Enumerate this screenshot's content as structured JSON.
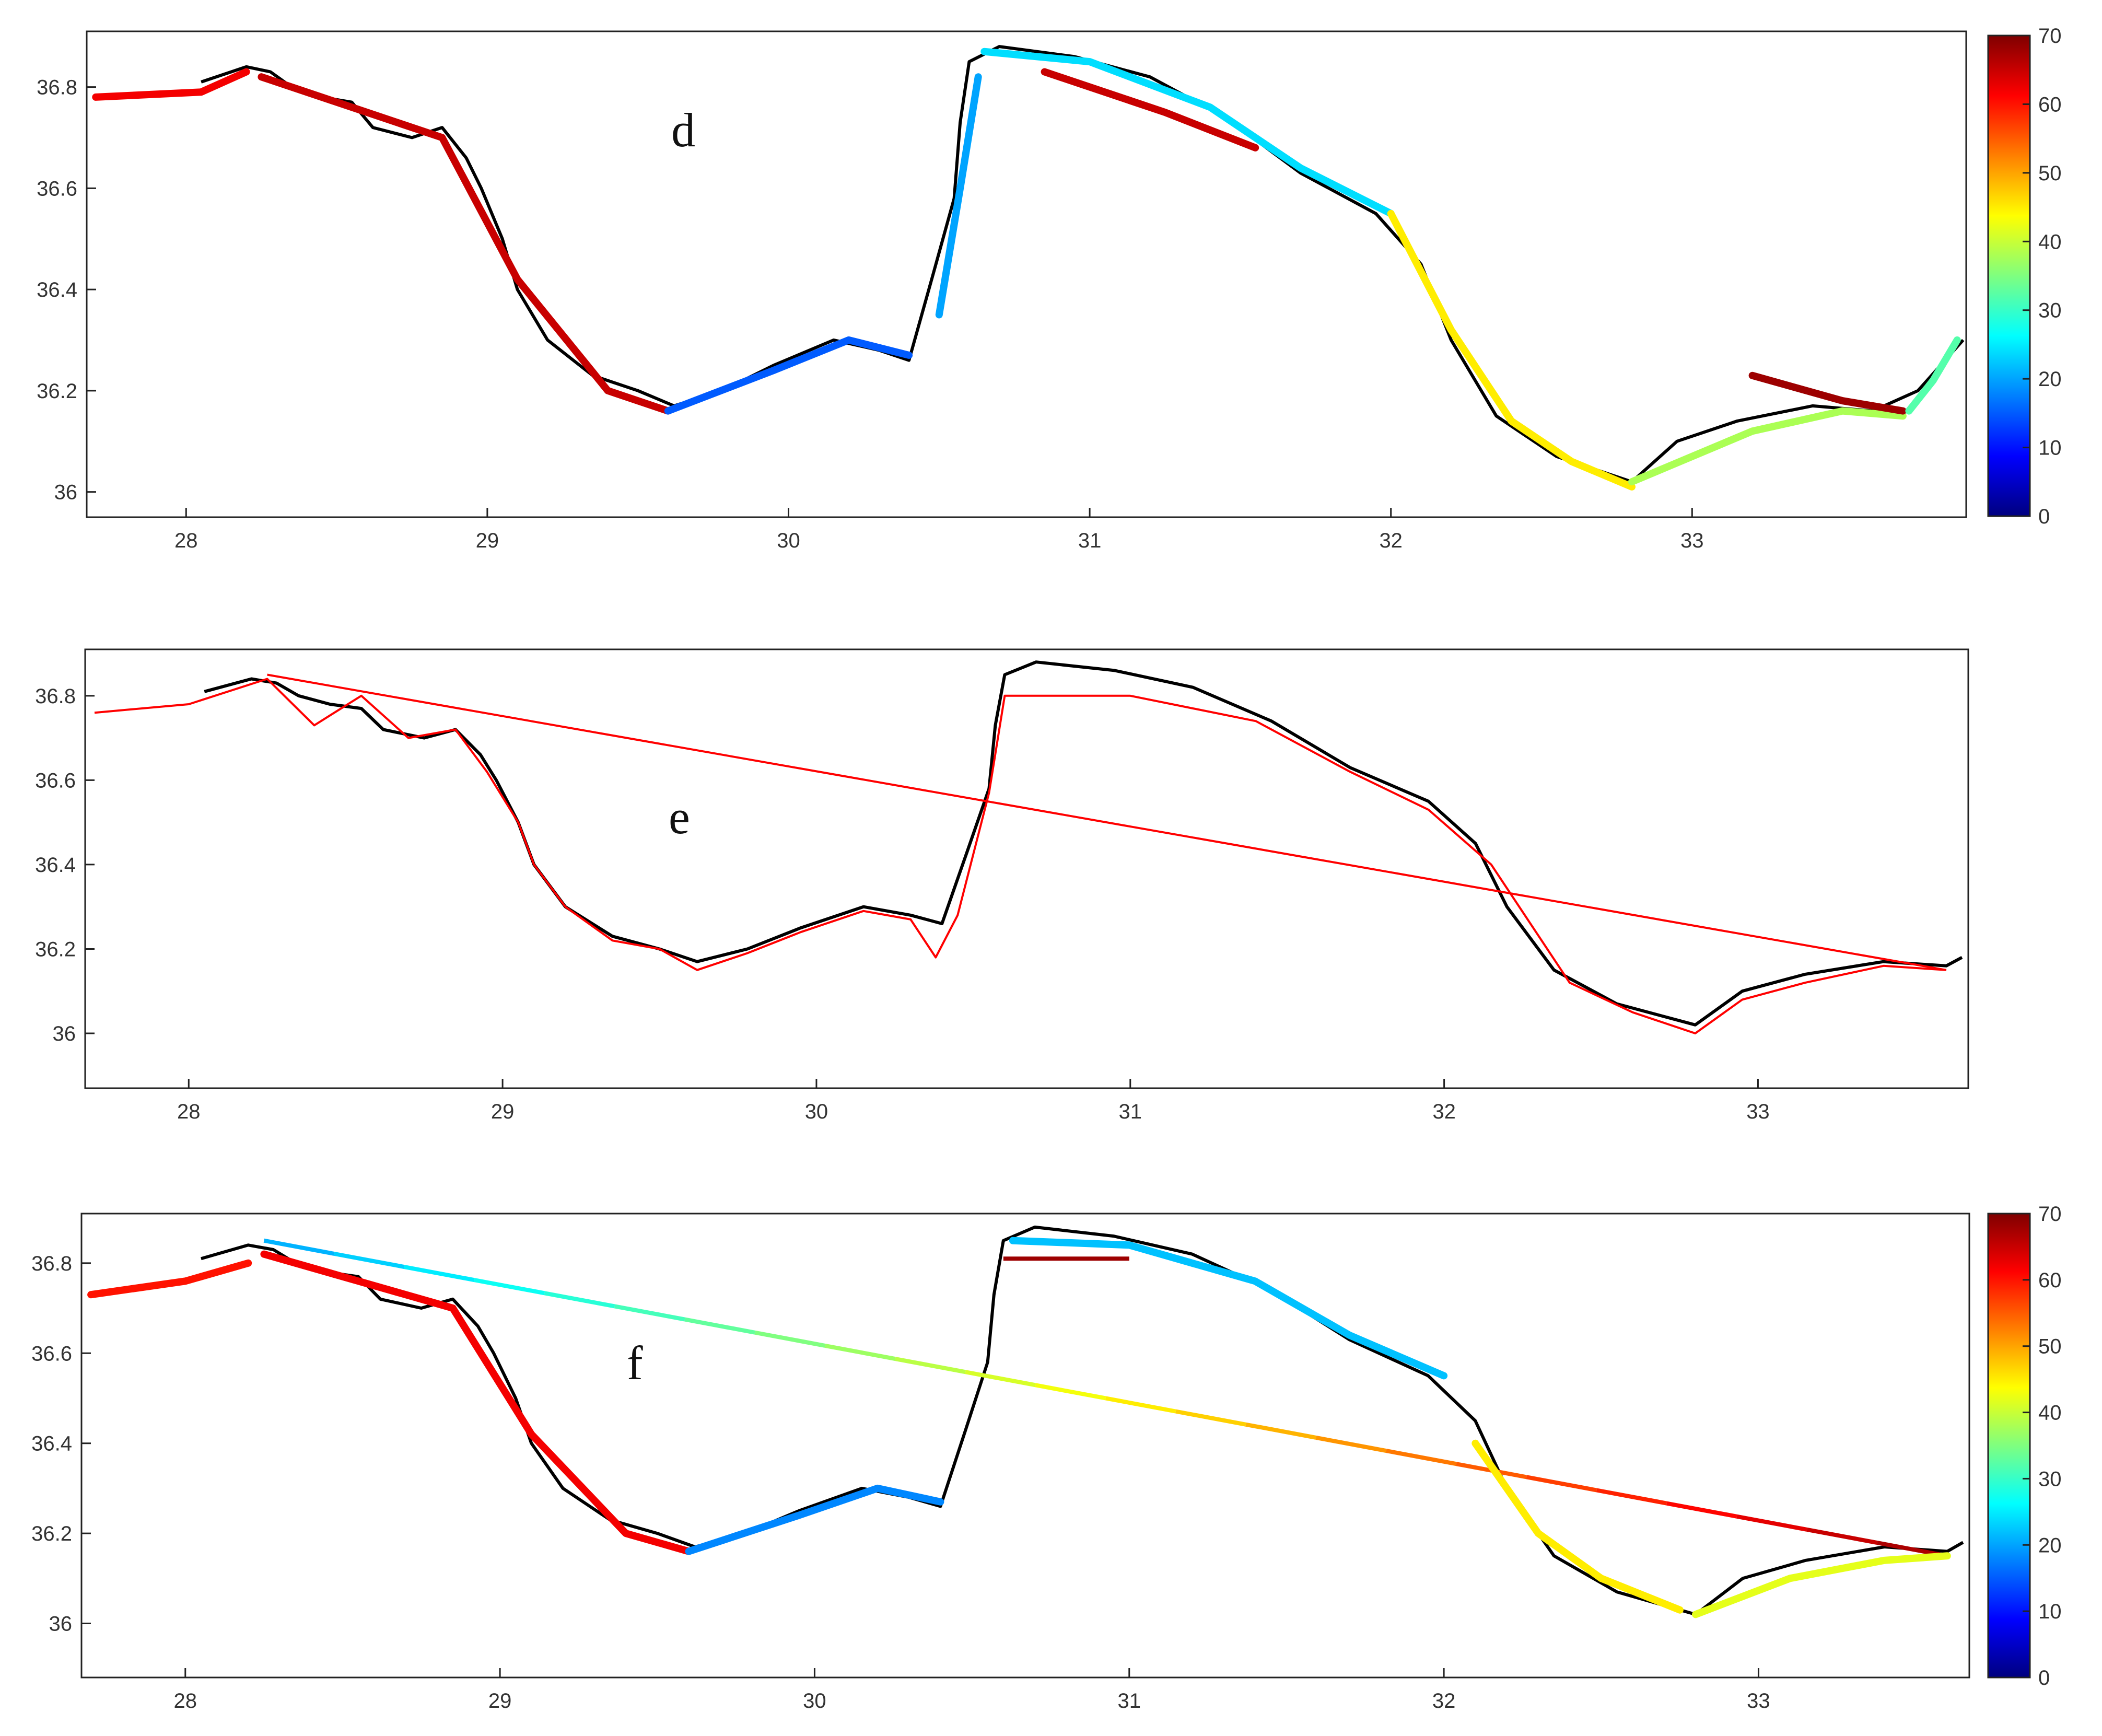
{
  "chart_data": [
    {
      "type": "line",
      "panel_label": "d",
      "xlim": [
        27.67,
        33.91
      ],
      "ylim": [
        35.95,
        36.91
      ],
      "x_ticks": [
        28,
        29,
        30,
        31,
        32,
        33
      ],
      "x_tick_labels": [
        "28",
        "29",
        "30",
        "31",
        "32",
        "33"
      ],
      "y_ticks": [
        36,
        36.2,
        36.4,
        36.6,
        36.8
      ],
      "y_tick_labels": [
        "36",
        "36.2",
        "36.4",
        "36.6",
        "36.8"
      ],
      "grid": false,
      "colorbar": {
        "min": 0,
        "max": 70,
        "ticks": [
          0,
          10,
          20,
          30,
          40,
          50,
          60,
          70
        ],
        "tick_labels": [
          "0",
          "10",
          "20",
          "30",
          "40",
          "50",
          "60",
          "70"
        ],
        "colormap": "jet"
      },
      "coastline": [
        [
          28.05,
          36.81
        ],
        [
          28.2,
          36.84
        ],
        [
          28.28,
          36.83
        ],
        [
          28.35,
          36.8
        ],
        [
          28.45,
          36.78
        ],
        [
          28.55,
          36.77
        ],
        [
          28.62,
          36.72
        ],
        [
          28.75,
          36.7
        ],
        [
          28.85,
          36.72
        ],
        [
          28.93,
          36.66
        ],
        [
          28.98,
          36.6
        ],
        [
          29.05,
          36.5
        ],
        [
          29.1,
          36.4
        ],
        [
          29.2,
          36.3
        ],
        [
          29.35,
          36.23
        ],
        [
          29.5,
          36.2
        ],
        [
          29.62,
          36.17
        ],
        [
          29.78,
          36.2
        ],
        [
          29.95,
          36.25
        ],
        [
          30.15,
          36.3
        ],
        [
          30.3,
          36.28
        ],
        [
          30.4,
          36.26
        ],
        [
          30.48,
          36.43
        ],
        [
          30.55,
          36.58
        ],
        [
          30.57,
          36.73
        ],
        [
          30.6,
          36.85
        ],
        [
          30.7,
          36.88
        ],
        [
          30.95,
          36.86
        ],
        [
          31.2,
          36.82
        ],
        [
          31.45,
          36.74
        ],
        [
          31.7,
          36.63
        ],
        [
          31.95,
          36.55
        ],
        [
          32.1,
          36.45
        ],
        [
          32.2,
          36.3
        ],
        [
          32.35,
          36.15
        ],
        [
          32.55,
          36.07
        ],
        [
          32.8,
          36.02
        ],
        [
          32.95,
          36.1
        ],
        [
          33.15,
          36.14
        ],
        [
          33.4,
          36.17
        ],
        [
          33.6,
          36.16
        ],
        [
          33.75,
          36.2
        ],
        [
          33.9,
          36.3
        ]
      ],
      "segments": [
        {
          "x": [
            27.7,
            28.05,
            28.2
          ],
          "y": [
            36.78,
            36.79,
            36.83
          ],
          "value": 62
        },
        {
          "x": [
            28.25,
            28.55,
            28.85,
            29.1,
            29.4,
            29.6
          ],
          "y": [
            36.82,
            36.76,
            36.7,
            36.42,
            36.2,
            36.16
          ],
          "value": 65
        },
        {
          "x": [
            29.6,
            29.95,
            30.2,
            30.4
          ],
          "y": [
            36.16,
            36.24,
            36.3,
            36.27
          ],
          "value": 15
        },
        {
          "x": [
            30.5,
            30.57,
            30.63
          ],
          "y": [
            36.35,
            36.6,
            36.82
          ],
          "value": 20
        },
        {
          "x": [
            30.65,
            31.0,
            31.4,
            31.7,
            32.0
          ],
          "y": [
            36.87,
            36.85,
            36.76,
            36.64,
            36.55
          ],
          "value": 24
        },
        {
          "x": [
            30.85,
            31.25,
            31.55
          ],
          "y": [
            36.83,
            36.75,
            36.68
          ],
          "value": 65
        },
        {
          "x": [
            32.0,
            32.2,
            32.4,
            32.6,
            32.8
          ],
          "y": [
            36.55,
            36.32,
            36.14,
            36.06,
            36.01
          ],
          "value": 45
        },
        {
          "x": [
            32.8,
            33.2,
            33.5,
            33.7
          ],
          "y": [
            36.02,
            36.12,
            36.16,
            36.15
          ],
          "value": 38
        },
        {
          "x": [
            33.2,
            33.5,
            33.7
          ],
          "y": [
            36.23,
            36.18,
            36.16
          ],
          "value": 68
        },
        {
          "x": [
            33.72,
            33.8,
            33.88
          ],
          "y": [
            36.16,
            36.22,
            36.3
          ],
          "value": 32
        }
      ]
    },
    {
      "type": "line",
      "panel_label": "e",
      "xlim": [
        27.67,
        33.67
      ],
      "ylim": [
        35.87,
        36.91
      ],
      "x_ticks": [
        28,
        29,
        30,
        31,
        32,
        33
      ],
      "x_tick_labels": [
        "28",
        "29",
        "30",
        "31",
        "32",
        "33"
      ],
      "y_ticks": [
        36,
        36.2,
        36.4,
        36.6,
        36.8
      ],
      "y_tick_labels": [
        "36",
        "36.2",
        "36.4",
        "36.6",
        "36.8"
      ],
      "grid": false,
      "coastline": [
        [
          28.05,
          36.81
        ],
        [
          28.2,
          36.84
        ],
        [
          28.28,
          36.83
        ],
        [
          28.35,
          36.8
        ],
        [
          28.45,
          36.78
        ],
        [
          28.55,
          36.77
        ],
        [
          28.62,
          36.72
        ],
        [
          28.75,
          36.7
        ],
        [
          28.85,
          36.72
        ],
        [
          28.93,
          36.66
        ],
        [
          28.98,
          36.6
        ],
        [
          29.05,
          36.5
        ],
        [
          29.1,
          36.4
        ],
        [
          29.2,
          36.3
        ],
        [
          29.35,
          36.23
        ],
        [
          29.5,
          36.2
        ],
        [
          29.62,
          36.17
        ],
        [
          29.78,
          36.2
        ],
        [
          29.95,
          36.25
        ],
        [
          30.15,
          36.3
        ],
        [
          30.3,
          36.28
        ],
        [
          30.4,
          36.26
        ],
        [
          30.48,
          36.43
        ],
        [
          30.55,
          36.58
        ],
        [
          30.57,
          36.73
        ],
        [
          30.6,
          36.85
        ],
        [
          30.7,
          36.88
        ],
        [
          30.95,
          36.86
        ],
        [
          31.2,
          36.82
        ],
        [
          31.45,
          36.74
        ],
        [
          31.7,
          36.63
        ],
        [
          31.95,
          36.55
        ],
        [
          32.1,
          36.45
        ],
        [
          32.2,
          36.3
        ],
        [
          32.35,
          36.15
        ],
        [
          32.55,
          36.07
        ],
        [
          32.8,
          36.02
        ],
        [
          32.95,
          36.1
        ],
        [
          33.15,
          36.14
        ],
        [
          33.4,
          36.17
        ],
        [
          33.6,
          36.16
        ],
        [
          33.65,
          36.18
        ]
      ],
      "shoreline_trace": [
        [
          27.7,
          36.76
        ],
        [
          28.0,
          36.78
        ],
        [
          28.25,
          36.84
        ],
        [
          28.4,
          36.73
        ],
        [
          28.55,
          36.8
        ],
        [
          28.7,
          36.7
        ],
        [
          28.85,
          36.72
        ],
        [
          28.95,
          36.62
        ],
        [
          29.05,
          36.5
        ],
        [
          29.1,
          36.4
        ],
        [
          29.2,
          36.3
        ],
        [
          29.35,
          36.22
        ],
        [
          29.5,
          36.2
        ],
        [
          29.62,
          36.15
        ],
        [
          29.78,
          36.19
        ],
        [
          29.95,
          36.24
        ],
        [
          30.15,
          36.29
        ],
        [
          30.3,
          36.27
        ],
        [
          30.38,
          36.18
        ],
        [
          30.45,
          36.28
        ],
        [
          30.55,
          36.57
        ],
        [
          30.6,
          36.8
        ],
        [
          31.0,
          36.8
        ],
        [
          31.4,
          36.74
        ],
        [
          31.7,
          36.62
        ],
        [
          31.95,
          36.53
        ],
        [
          32.15,
          36.4
        ],
        [
          32.4,
          36.12
        ],
        [
          32.6,
          36.05
        ],
        [
          32.8,
          36.0
        ],
        [
          32.95,
          36.08
        ],
        [
          33.15,
          36.12
        ],
        [
          33.4,
          36.16
        ],
        [
          33.6,
          36.15
        ]
      ],
      "long_transect": [
        [
          28.25,
          36.85
        ],
        [
          33.6,
          36.15
        ]
      ]
    },
    {
      "type": "line",
      "panel_label": "f",
      "xlim": [
        27.67,
        33.67
      ],
      "ylim": [
        35.88,
        36.91
      ],
      "x_ticks": [
        28,
        29,
        30,
        31,
        32,
        33
      ],
      "x_tick_labels": [
        "28",
        "29",
        "30",
        "31",
        "32",
        "33"
      ],
      "y_ticks": [
        36,
        36.2,
        36.4,
        36.6,
        36.8
      ],
      "y_tick_labels": [
        "36",
        "36.2",
        "36.4",
        "36.6",
        "36.8"
      ],
      "grid": false,
      "colorbar": {
        "min": 0,
        "max": 70,
        "ticks": [
          0,
          10,
          20,
          30,
          40,
          50,
          60,
          70
        ],
        "tick_labels": [
          "0",
          "10",
          "20",
          "30",
          "40",
          "50",
          "60",
          "70"
        ],
        "colormap": "jet"
      },
      "coastline": [
        [
          28.05,
          36.81
        ],
        [
          28.2,
          36.84
        ],
        [
          28.28,
          36.83
        ],
        [
          28.35,
          36.8
        ],
        [
          28.45,
          36.78
        ],
        [
          28.55,
          36.77
        ],
        [
          28.62,
          36.72
        ],
        [
          28.75,
          36.7
        ],
        [
          28.85,
          36.72
        ],
        [
          28.93,
          36.66
        ],
        [
          28.98,
          36.6
        ],
        [
          29.05,
          36.5
        ],
        [
          29.1,
          36.4
        ],
        [
          29.2,
          36.3
        ],
        [
          29.35,
          36.23
        ],
        [
          29.5,
          36.2
        ],
        [
          29.62,
          36.17
        ],
        [
          29.78,
          36.2
        ],
        [
          29.95,
          36.25
        ],
        [
          30.15,
          36.3
        ],
        [
          30.3,
          36.28
        ],
        [
          30.4,
          36.26
        ],
        [
          30.48,
          36.43
        ],
        [
          30.55,
          36.58
        ],
        [
          30.57,
          36.73
        ],
        [
          30.6,
          36.85
        ],
        [
          30.7,
          36.88
        ],
        [
          30.95,
          36.86
        ],
        [
          31.2,
          36.82
        ],
        [
          31.45,
          36.74
        ],
        [
          31.7,
          36.63
        ],
        [
          31.95,
          36.55
        ],
        [
          32.1,
          36.45
        ],
        [
          32.2,
          36.3
        ],
        [
          32.35,
          36.15
        ],
        [
          32.55,
          36.07
        ],
        [
          32.8,
          36.02
        ],
        [
          32.95,
          36.1
        ],
        [
          33.15,
          36.14
        ],
        [
          33.4,
          36.17
        ],
        [
          33.6,
          36.16
        ],
        [
          33.65,
          36.18
        ]
      ],
      "segments": [
        {
          "x": [
            27.7,
            28.0,
            28.2
          ],
          "y": [
            36.73,
            36.76,
            36.8
          ],
          "value": 60
        },
        {
          "x": [
            28.25,
            28.55,
            28.85,
            29.1,
            29.4,
            29.6
          ],
          "y": [
            36.82,
            36.76,
            36.7,
            36.42,
            36.2,
            36.16
          ],
          "value": 62
        },
        {
          "x": [
            29.6,
            29.95,
            30.2,
            30.4
          ],
          "y": [
            36.16,
            36.24,
            36.3,
            36.27
          ],
          "value": 18
        },
        {
          "x": [
            30.63,
            31.0,
            31.4,
            31.7,
            32.0
          ],
          "y": [
            36.85,
            36.84,
            36.76,
            36.64,
            36.55
          ],
          "value": 22
        },
        {
          "x": [
            32.1,
            32.3,
            32.5,
            32.75
          ],
          "y": [
            36.4,
            36.2,
            36.1,
            36.03
          ],
          "value": 45
        },
        {
          "x": [
            32.8,
            33.1,
            33.4,
            33.6
          ],
          "y": [
            36.02,
            36.1,
            36.14,
            36.15
          ],
          "value": 42
        }
      ],
      "gradient_transect": {
        "x": [
          28.25,
          33.6
        ],
        "y": [
          36.85,
          36.15
        ],
        "value_start": 20,
        "value_end": 68
      },
      "short_transect": {
        "x": [
          30.6,
          31.0
        ],
        "y": [
          36.81,
          36.81
        ],
        "value": 68
      }
    }
  ]
}
